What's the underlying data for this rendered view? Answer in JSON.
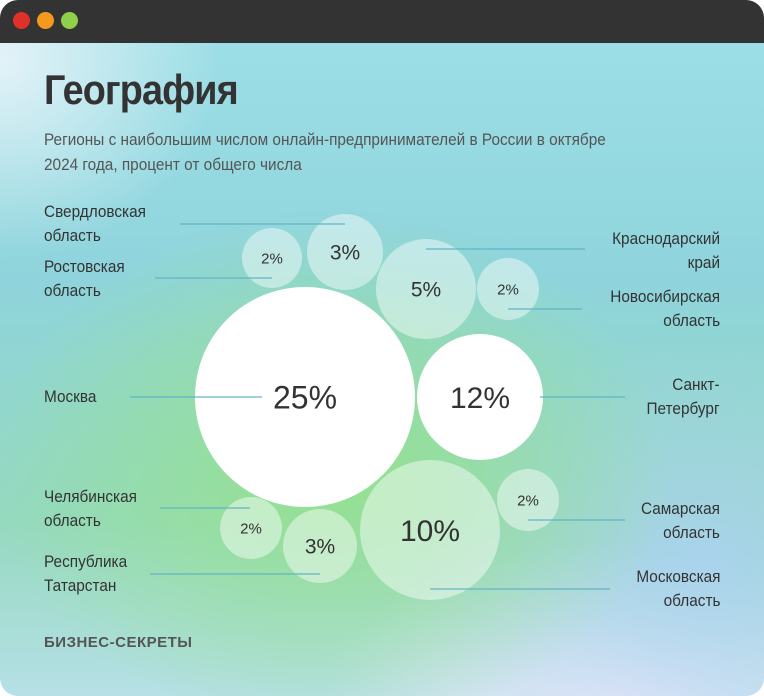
{
  "window": {
    "controls": [
      {
        "name": "close",
        "color": "#e0302a"
      },
      {
        "name": "minimize",
        "color": "#f39a1e"
      },
      {
        "name": "maximize",
        "color": "#8fcf4a"
      }
    ]
  },
  "header": {
    "title": "География",
    "subtitle": "Регионы с наибольшим числом онлайн-предпринимателей в России в октябре 2024 года, процент от общего числа"
  },
  "footer": {
    "brand": "БИЗНЕС-СЕКРЕТЫ"
  },
  "chart_data": {
    "type": "bubble",
    "title": "География",
    "subtitle": "Регионы с наибольшим числом онлайн-предпринимателей в России в октябре 2024 года, процент от общего числа",
    "unit": "%",
    "items": [
      {
        "region": "Москва",
        "value": 25,
        "label": "25%"
      },
      {
        "region": "Санкт-\nПетербург",
        "value": 12,
        "label": "12%"
      },
      {
        "region": "Московская\nобласть",
        "value": 10,
        "label": "10%"
      },
      {
        "region": "Краснодарский\nкрай",
        "value": 5,
        "label": "5%"
      },
      {
        "region": "Свердловская\nобласть",
        "value": 3,
        "label": "3%"
      },
      {
        "region": "Республика\nТатарстан",
        "value": 3,
        "label": "3%"
      },
      {
        "region": "Ростовская\nобласть",
        "value": 2,
        "label": "2%"
      },
      {
        "region": "Новосибирская\nобласть",
        "value": 2,
        "label": "2%"
      },
      {
        "region": "Самарская\nобласть",
        "value": 2,
        "label": "2%"
      },
      {
        "region": "Челябинская\nобласть",
        "value": 2,
        "label": "2%"
      }
    ],
    "colors": {
      "bubble_large": "#ffffff",
      "bubble_small": "rgba(255,255,255,0.45)",
      "leader_line": "#5fb3c4",
      "text": "#333333"
    }
  }
}
